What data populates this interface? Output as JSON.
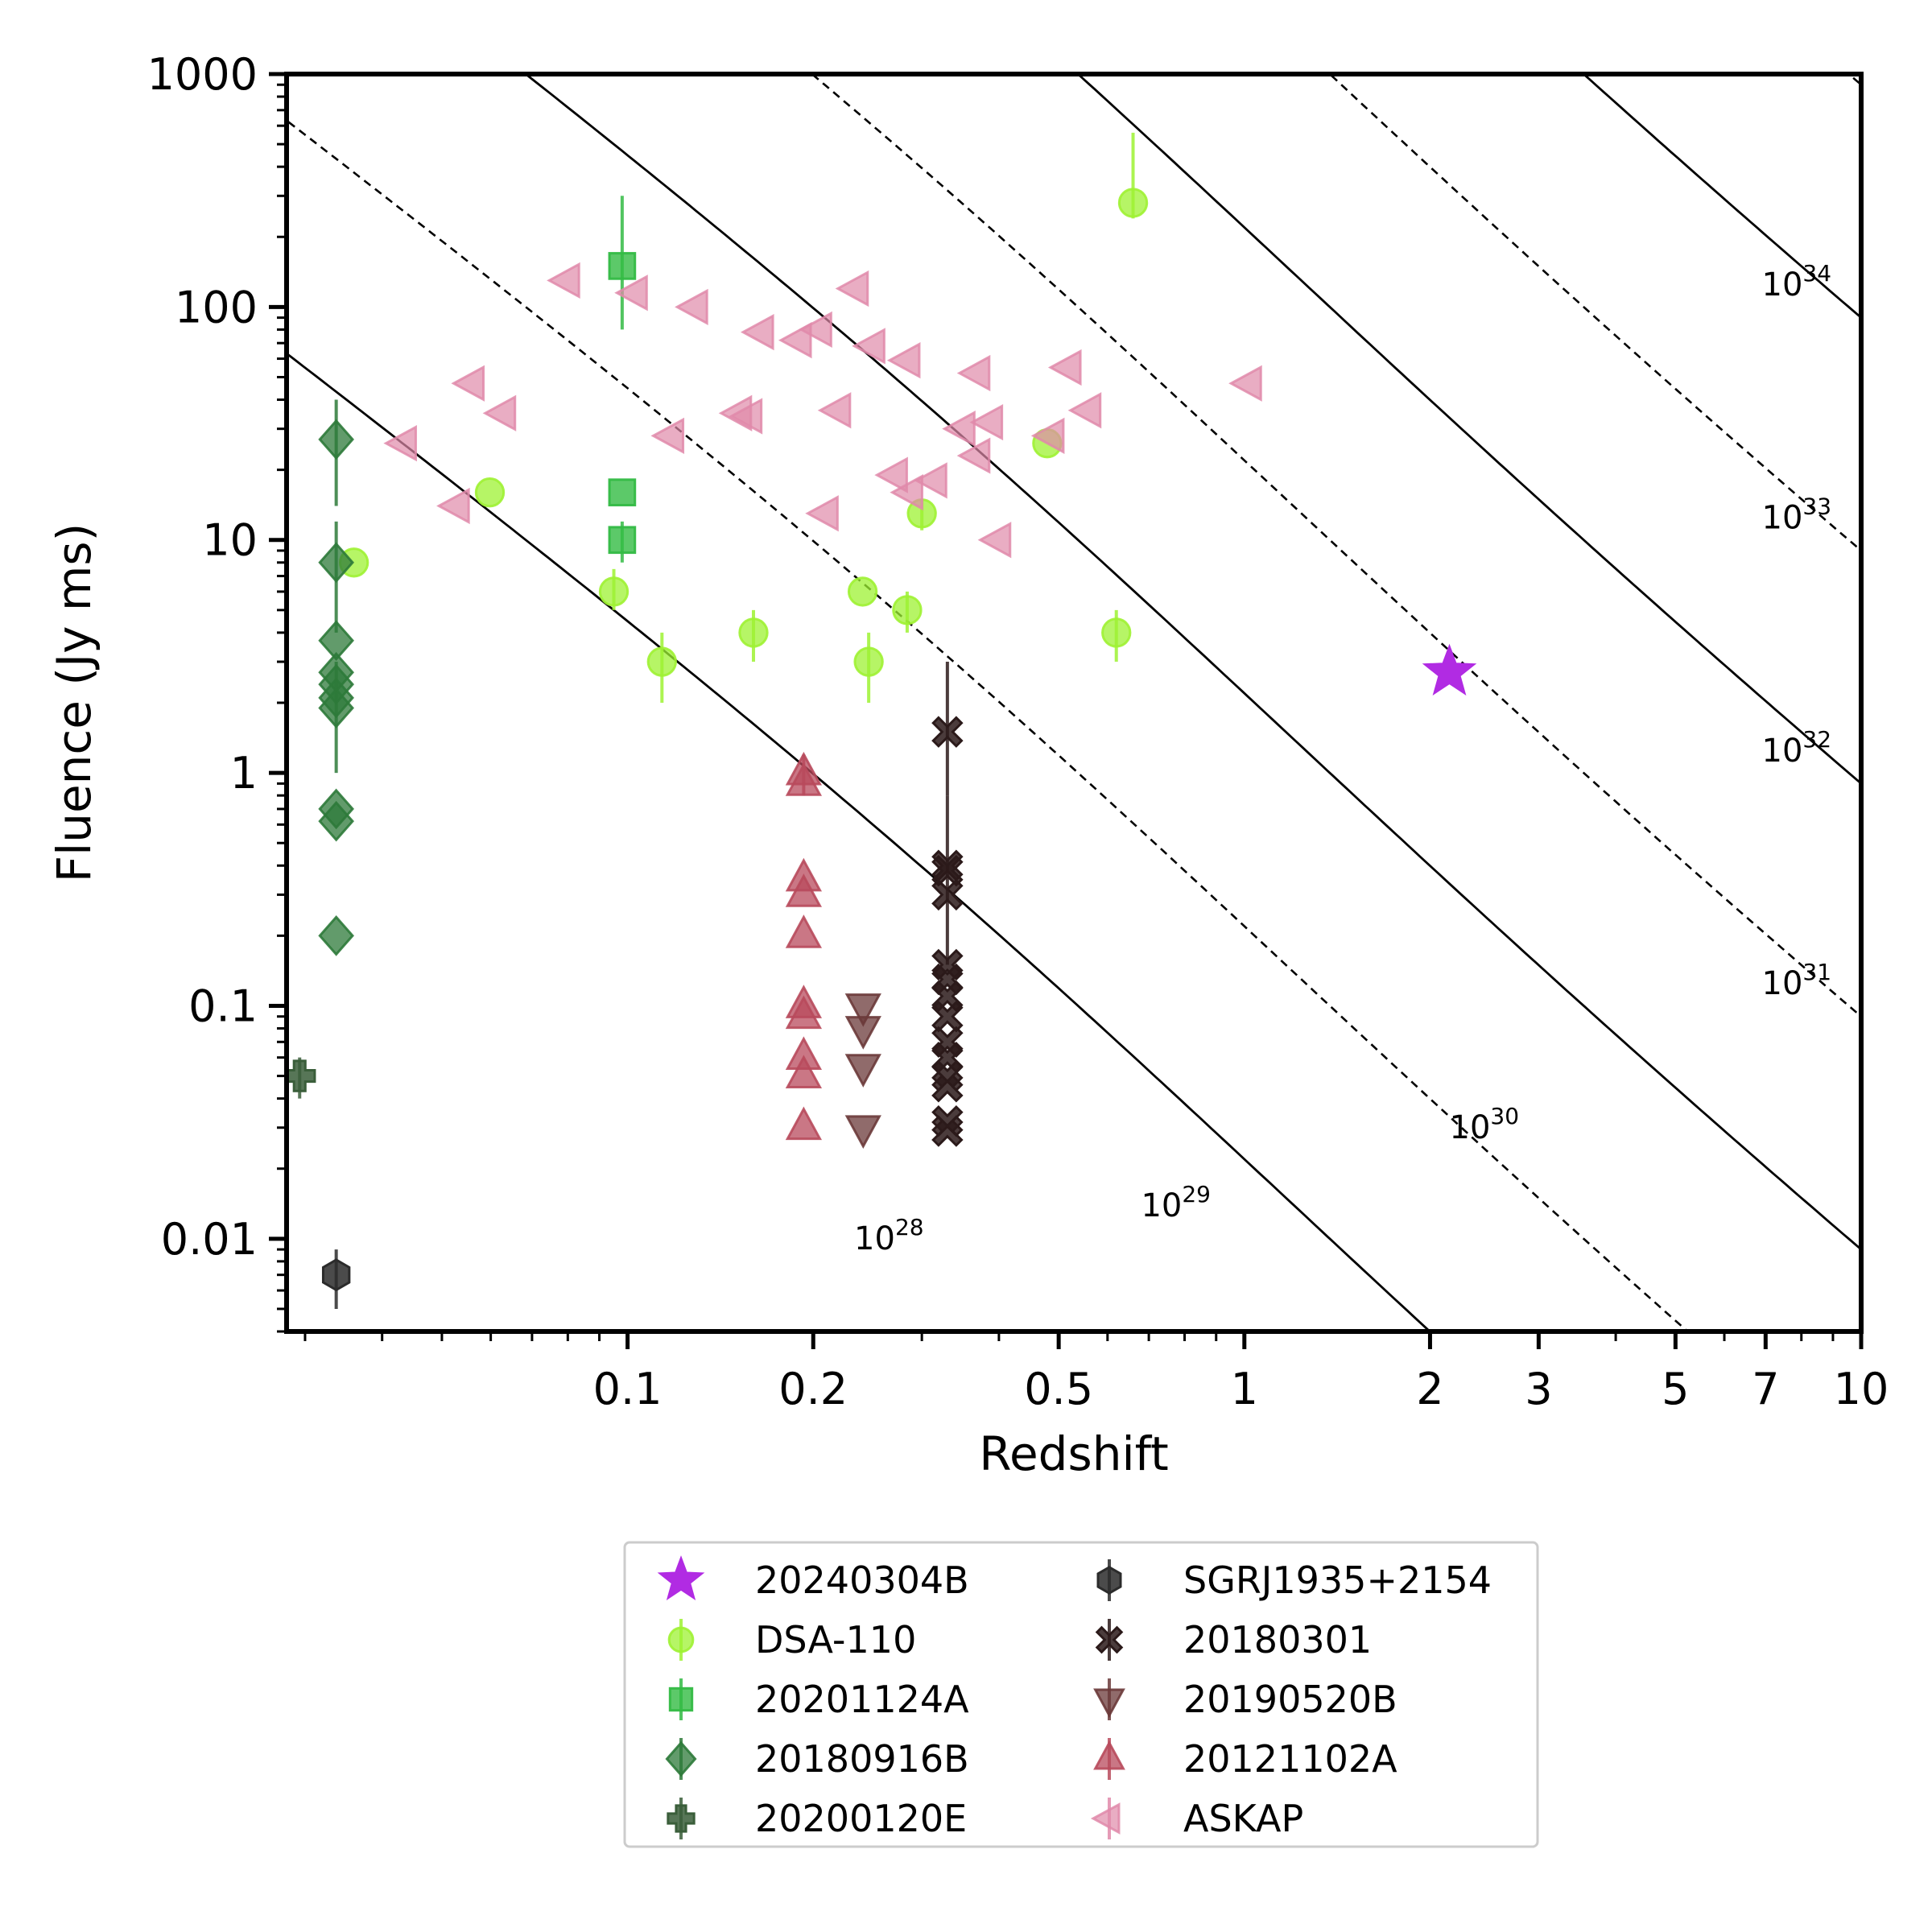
{
  "chart_data": {
    "type": "scatter",
    "title": "",
    "xlabel": "Redshift",
    "ylabel": "Fluence (Jy ms)",
    "xscale": "log",
    "yscale": "log",
    "xlim": [
      0.028,
      10
    ],
    "ylim": [
      0.004,
      1000
    ],
    "grid": false,
    "legend_placement": "below-center",
    "x_ticks": [
      {
        "value": 0.1,
        "label": "0.1"
      },
      {
        "value": 0.2,
        "label": "0.2"
      },
      {
        "value": 0.5,
        "label": "0.5"
      },
      {
        "value": 1,
        "label": "1"
      },
      {
        "value": 2,
        "label": "2"
      },
      {
        "value": 3,
        "label": "3"
      },
      {
        "value": 5,
        "label": "5"
      },
      {
        "value": 7,
        "label": "7"
      },
      {
        "value": 10,
        "label": "10"
      }
    ],
    "y_ticks": [
      {
        "value": 0.01,
        "label": "0.01"
      },
      {
        "value": 0.1,
        "label": "0.1"
      },
      {
        "value": 1,
        "label": "1"
      },
      {
        "value": 10,
        "label": "10"
      },
      {
        "value": 100,
        "label": "100"
      },
      {
        "value": 1000,
        "label": "1000"
      }
    ],
    "energy_curves": [
      {
        "exponent": "28",
        "style": "solid",
        "y_at_10": 9e-05,
        "label_x": 0.233,
        "label_y": 0.009
      },
      {
        "exponent": "29",
        "style": "dashed",
        "y_at_10": 0.0009,
        "label_x": 0.68,
        "label_y": 0.0125
      },
      {
        "exponent": "30",
        "style": "solid",
        "y_at_10": 0.009,
        "label_x": 2.15,
        "label_y": 0.027
      },
      {
        "exponent": "31",
        "style": "dashed",
        "y_at_10": 0.09,
        "label_x": 6.9,
        "label_y": 0.112
      },
      {
        "exponent": "32",
        "style": "solid",
        "y_at_10": 0.9,
        "label_x": 6.9,
        "label_y": 1.12
      },
      {
        "exponent": "33",
        "style": "dashed",
        "y_at_10": 9,
        "label_x": 6.9,
        "label_y": 11.2
      },
      {
        "exponent": "34",
        "style": "solid",
        "y_at_10": 90,
        "label_x": 6.9,
        "label_y": 112
      },
      {
        "exponent": "35",
        "style": "dashed",
        "y_at_10": 900,
        "label_x": null,
        "label_y": null
      }
    ],
    "series": [
      {
        "name": "20240304B",
        "marker": "star",
        "color": "#b12be3",
        "alpha": 1.0,
        "points": [
          {
            "x": 2.15,
            "y": 2.7
          }
        ]
      },
      {
        "name": "DSA-110",
        "marker": "circle",
        "color": "#9ef233",
        "alpha": 0.75,
        "points": [
          {
            "x": 0.036,
            "y": 8
          },
          {
            "x": 0.0598,
            "y": 16
          },
          {
            "x": 0.095,
            "y": 6,
            "yerr": [
              5,
              7.5
            ]
          },
          {
            "x": 0.1137,
            "y": 3,
            "yerr": [
              2,
              4
            ]
          },
          {
            "x": 0.16,
            "y": 4,
            "yerr": [
              3,
              5
            ]
          },
          {
            "x": 0.2405,
            "y": 6
          },
          {
            "x": 0.246,
            "y": 3,
            "yerr": [
              2,
              4
            ]
          },
          {
            "x": 0.284,
            "y": 5,
            "yerr": [
              4,
              6
            ]
          },
          {
            "x": 0.3,
            "y": 13,
            "yerr": [
              11,
              15
            ]
          },
          {
            "x": 0.479,
            "y": 26
          },
          {
            "x": 0.62,
            "y": 4,
            "yerr": [
              3,
              5
            ]
          },
          {
            "x": 0.66,
            "y": 280,
            "yerr": [
              240,
              560
            ]
          }
        ]
      },
      {
        "name": "20201124A",
        "marker": "square",
        "color": "#33bb44",
        "alpha": 0.8,
        "points": [
          {
            "x": 0.098,
            "y": 150,
            "yerr": [
              80,
              300
            ]
          },
          {
            "x": 0.098,
            "y": 16
          },
          {
            "x": 0.098,
            "y": 10,
            "yerr": [
              8,
              12
            ]
          }
        ]
      },
      {
        "name": "20180916B",
        "marker": "diamond",
        "color": "#2e7a3a",
        "alpha": 0.75,
        "points": [
          {
            "x": 0.0337,
            "y": 27,
            "yerr": [
              14,
              40
            ]
          },
          {
            "x": 0.0337,
            "y": 8,
            "yerr": [
              4,
              12
            ]
          },
          {
            "x": 0.0337,
            "y": 3.7
          },
          {
            "x": 0.0337,
            "y": 2.7
          },
          {
            "x": 0.0337,
            "y": 2.4
          },
          {
            "x": 0.0337,
            "y": 2.1
          },
          {
            "x": 0.0337,
            "y": 1.9,
            "yerr": [
              1,
              3
            ]
          },
          {
            "x": 0.0337,
            "y": 0.7
          },
          {
            "x": 0.0337,
            "y": 0.62
          },
          {
            "x": 0.0337,
            "y": 0.2
          }
        ]
      },
      {
        "name": "20200120E",
        "marker": "plus",
        "color": "#3a5e3a",
        "alpha": 0.85,
        "points": [
          {
            "x": 0.0294,
            "y": 0.05,
            "yerr": [
              0.04,
              0.06
            ]
          }
        ]
      },
      {
        "name": "SGRJ1935+2154",
        "marker": "hexagon",
        "color": "#2b2b2b",
        "alpha": 0.85,
        "points": [
          {
            "x": 0.0337,
            "y": 0.007,
            "yerr": [
              0.005,
              0.009
            ]
          }
        ]
      },
      {
        "name": "20180301",
        "marker": "x",
        "color": "#2b1a1a",
        "alpha": 0.85,
        "points": [
          {
            "x": 0.33,
            "y": 1.5,
            "yerr": [
              0.8,
              3
            ]
          },
          {
            "x": 0.33,
            "y": 0.4,
            "yerr": [
              0.15,
              0.8
            ]
          },
          {
            "x": 0.33,
            "y": 0.38
          },
          {
            "x": 0.33,
            "y": 0.3
          },
          {
            "x": 0.33,
            "y": 0.15
          },
          {
            "x": 0.33,
            "y": 0.13
          },
          {
            "x": 0.33,
            "y": 0.11
          },
          {
            "x": 0.33,
            "y": 0.09
          },
          {
            "x": 0.33,
            "y": 0.07
          },
          {
            "x": 0.33,
            "y": 0.06
          },
          {
            "x": 0.33,
            "y": 0.05
          },
          {
            "x": 0.33,
            "y": 0.045
          },
          {
            "x": 0.33,
            "y": 0.032
          },
          {
            "x": 0.33,
            "y": 0.029
          }
        ]
      },
      {
        "name": "20190520B",
        "marker": "triangle-down",
        "color": "#6b3a3a",
        "alpha": 0.75,
        "points": [
          {
            "x": 0.241,
            "y": 0.1
          },
          {
            "x": 0.241,
            "y": 0.08
          },
          {
            "x": 0.241,
            "y": 0.055
          },
          {
            "x": 0.241,
            "y": 0.03
          }
        ]
      },
      {
        "name": "20121102A",
        "marker": "triangle-up",
        "color": "#b84a5c",
        "alpha": 0.75,
        "points": [
          {
            "x": 0.193,
            "y": 1.0,
            "yerr": [
              0.8,
              1.2
            ]
          },
          {
            "x": 0.193,
            "y": 0.9
          },
          {
            "x": 0.193,
            "y": 0.35
          },
          {
            "x": 0.193,
            "y": 0.3
          },
          {
            "x": 0.193,
            "y": 0.2
          },
          {
            "x": 0.193,
            "y": 0.1
          },
          {
            "x": 0.193,
            "y": 0.09
          },
          {
            "x": 0.193,
            "y": 0.06
          },
          {
            "x": 0.193,
            "y": 0.05
          },
          {
            "x": 0.193,
            "y": 0.03
          }
        ]
      },
      {
        "name": "ASKAP",
        "marker": "triangle-left",
        "color": "#e08aaa",
        "alpha": 0.7,
        "points": [
          {
            "x": 0.0435,
            "y": 26
          },
          {
            "x": 0.053,
            "y": 14
          },
          {
            "x": 0.056,
            "y": 47
          },
          {
            "x": 0.063,
            "y": 35
          },
          {
            "x": 0.08,
            "y": 130
          },
          {
            "x": 0.103,
            "y": 115
          },
          {
            "x": 0.118,
            "y": 28
          },
          {
            "x": 0.129,
            "y": 100
          },
          {
            "x": 0.152,
            "y": 35
          },
          {
            "x": 0.158,
            "y": 34
          },
          {
            "x": 0.165,
            "y": 78
          },
          {
            "x": 0.19,
            "y": 72
          },
          {
            "x": 0.205,
            "y": 80
          },
          {
            "x": 0.21,
            "y": 13
          },
          {
            "x": 0.22,
            "y": 36
          },
          {
            "x": 0.235,
            "y": 120
          },
          {
            "x": 0.25,
            "y": 68
          },
          {
            "x": 0.272,
            "y": 19
          },
          {
            "x": 0.285,
            "y": 59
          },
          {
            "x": 0.288,
            "y": 16
          },
          {
            "x": 0.315,
            "y": 18
          },
          {
            "x": 0.35,
            "y": 30
          },
          {
            "x": 0.37,
            "y": 23
          },
          {
            "x": 0.37,
            "y": 52
          },
          {
            "x": 0.388,
            "y": 32
          },
          {
            "x": 0.4,
            "y": 10
          },
          {
            "x": 0.488,
            "y": 28
          },
          {
            "x": 0.52,
            "y": 55
          },
          {
            "x": 0.56,
            "y": 36
          },
          {
            "x": 1.02,
            "y": 47
          }
        ]
      }
    ]
  }
}
